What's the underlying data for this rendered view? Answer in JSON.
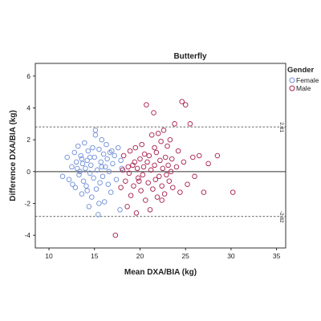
{
  "chart_data": {
    "type": "scatter",
    "title": "Butterfly",
    "xlabel": "Mean DXA/BIA (kg)",
    "ylabel": "Difference DXA/BIA (kg)",
    "xlim": [
      8.5,
      36
    ],
    "ylim": [
      -4.8,
      6.8
    ],
    "x_ticks": [
      10,
      15,
      20,
      25,
      30,
      35
    ],
    "y_ticks": [
      -4,
      -2,
      0,
      2,
      4,
      6
    ],
    "grid": false,
    "legend": {
      "title": "Gender",
      "placement": "top-right"
    },
    "reference_lines": [
      {
        "y": 2.81,
        "label": "2.81",
        "style": "dashed"
      },
      {
        "y": 0,
        "label": "",
        "style": "solid"
      },
      {
        "y": -2.82,
        "label": "-2.82",
        "style": "dashed"
      }
    ],
    "series": [
      {
        "name": "Female",
        "color": "#6f8fd8",
        "marker": "open-circle",
        "points": [
          [
            11.5,
            -0.3
          ],
          [
            12.0,
            0.9
          ],
          [
            12.2,
            -0.5
          ],
          [
            12.5,
            0.3
          ],
          [
            12.8,
            1.2
          ],
          [
            12.9,
            -1.0
          ],
          [
            13.0,
            0.6
          ],
          [
            13.2,
            1.6
          ],
          [
            13.3,
            -0.2
          ],
          [
            13.4,
            0.0
          ],
          [
            13.5,
            1.0
          ],
          [
            13.6,
            -1.4
          ],
          [
            13.7,
            0.5
          ],
          [
            13.8,
            -0.6
          ],
          [
            13.9,
            1.8
          ],
          [
            14.0,
            0.2
          ],
          [
            14.1,
            -0.9
          ],
          [
            14.2,
            0.7
          ],
          [
            14.3,
            1.3
          ],
          [
            14.4,
            -2.2
          ],
          [
            14.5,
            -0.1
          ],
          [
            14.6,
            0.4
          ],
          [
            14.7,
            -1.6
          ],
          [
            14.8,
            1.5
          ],
          [
            14.9,
            -0.4
          ],
          [
            15.0,
            0.9
          ],
          [
            15.1,
            2.3
          ],
          [
            15.2,
            -1.1
          ],
          [
            15.3,
            0.1
          ],
          [
            15.4,
            -2.7
          ],
          [
            15.5,
            1.4
          ],
          [
            15.6,
            -0.7
          ],
          [
            15.7,
            0.6
          ],
          [
            15.8,
            2.0
          ],
          [
            15.9,
            -0.3
          ],
          [
            16.0,
            1.1
          ],
          [
            16.1,
            -1.9
          ],
          [
            16.2,
            0.3
          ],
          [
            16.3,
            1.7
          ],
          [
            16.5,
            -0.8
          ],
          [
            16.6,
            0.0
          ],
          [
            16.7,
            1.2
          ],
          [
            16.8,
            -1.3
          ],
          [
            17.0,
            0.5
          ],
          [
            17.2,
            1.0
          ],
          [
            17.4,
            -0.5
          ],
          [
            17.6,
            1.5
          ],
          [
            17.8,
            -2.4
          ],
          [
            18.0,
            0.2
          ],
          [
            12.6,
            -0.8
          ],
          [
            13.1,
            0.2
          ],
          [
            14.5,
            0.9
          ],
          [
            15.8,
            0.3
          ],
          [
            16.9,
            1.3
          ],
          [
            14.2,
            -1.2
          ],
          [
            15.5,
            -2.0
          ],
          [
            13.6,
            0.8
          ],
          [
            16.4,
            0.8
          ],
          [
            17.9,
            0.7
          ],
          [
            15.1,
            2.6
          ]
        ]
      },
      {
        "name": "Male",
        "color": "#a8204e",
        "marker": "open-circle",
        "points": [
          [
            17.3,
            -4.0
          ],
          [
            17.9,
            -1.0
          ],
          [
            18.1,
            0.1
          ],
          [
            18.2,
            1.0
          ],
          [
            18.4,
            -0.6
          ],
          [
            18.6,
            -2.2
          ],
          [
            18.8,
            -0.1
          ],
          [
            18.9,
            1.3
          ],
          [
            19.0,
            -1.5
          ],
          [
            19.2,
            0.4
          ],
          [
            19.3,
            -0.9
          ],
          [
            19.5,
            1.5
          ],
          [
            19.6,
            -2.6
          ],
          [
            19.7,
            0.2
          ],
          [
            19.8,
            -0.4
          ],
          [
            20.0,
            0.8
          ],
          [
            20.1,
            -1.2
          ],
          [
            20.2,
            1.7
          ],
          [
            20.3,
            -0.2
          ],
          [
            20.4,
            0.3
          ],
          [
            20.6,
            -1.8
          ],
          [
            20.7,
            4.2
          ],
          [
            20.8,
            0.6
          ],
          [
            20.9,
            -0.7
          ],
          [
            21.0,
            1.0
          ],
          [
            21.1,
            -2.4
          ],
          [
            21.2,
            0.1
          ],
          [
            21.3,
            2.3
          ],
          [
            21.4,
            -1.1
          ],
          [
            21.5,
            3.7
          ],
          [
            21.6,
            0.4
          ],
          [
            21.7,
            -0.5
          ],
          [
            21.8,
            1.2
          ],
          [
            21.9,
            -1.6
          ],
          [
            22.0,
            2.4
          ],
          [
            22.1,
            -0.3
          ],
          [
            22.2,
            0.7
          ],
          [
            22.3,
            1.9
          ],
          [
            22.4,
            -0.9
          ],
          [
            22.5,
            0.2
          ],
          [
            22.6,
            2.6
          ],
          [
            22.7,
            -1.4
          ],
          [
            22.8,
            0.9
          ],
          [
            22.9,
            -0.2
          ],
          [
            23.0,
            1.6
          ],
          [
            23.1,
            0.4
          ],
          [
            23.2,
            -0.6
          ],
          [
            23.3,
            2.0
          ],
          [
            23.5,
            0.8
          ],
          [
            23.6,
            -1.0
          ],
          [
            23.8,
            3.0
          ],
          [
            24.0,
            0.3
          ],
          [
            24.2,
            1.3
          ],
          [
            24.4,
            -1.3
          ],
          [
            24.6,
            4.4
          ],
          [
            24.8,
            0.6
          ],
          [
            25.0,
            4.2
          ],
          [
            25.2,
            -0.8
          ],
          [
            25.5,
            3.0
          ],
          [
            25.8,
            0.9
          ],
          [
            26.0,
            -0.3
          ],
          [
            26.5,
            1.0
          ],
          [
            27.0,
            -1.3
          ],
          [
            27.5,
            0.5
          ],
          [
            28.5,
            1.0
          ],
          [
            30.2,
            -1.3
          ],
          [
            19.4,
            0.6
          ],
          [
            20.5,
            1.1
          ],
          [
            21.6,
            1.5
          ],
          [
            22.4,
            -1.8
          ],
          [
            23.4,
            0.0
          ],
          [
            19.9,
            -0.6
          ],
          [
            18.7,
            0.3
          ]
        ]
      }
    ]
  }
}
